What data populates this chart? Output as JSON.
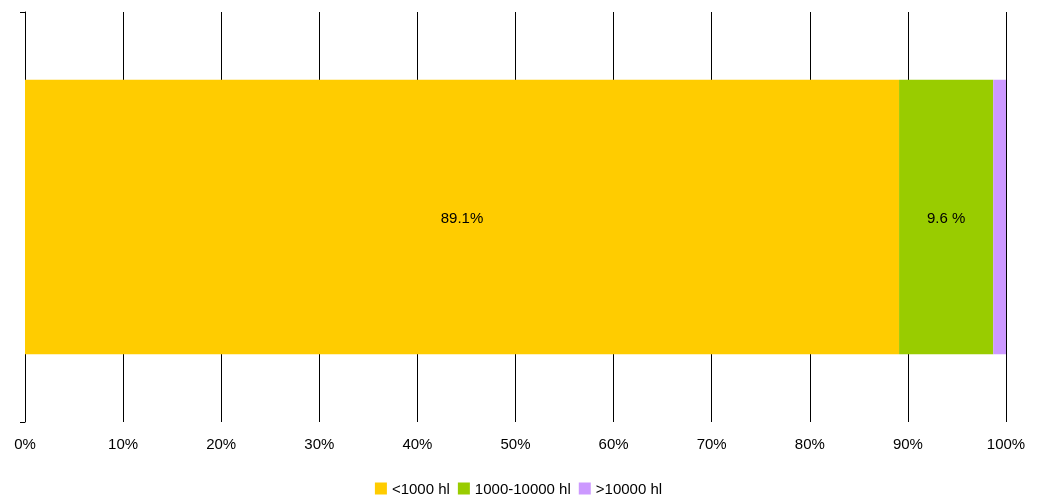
{
  "chart_data": {
    "type": "bar",
    "orientation": "horizontal",
    "stacked": true,
    "categories": [
      null
    ],
    "series": [
      {
        "name": "<1000 hl",
        "color": "#ffcc00",
        "values": [
          89.1
        ],
        "value_labels": [
          "89.1%"
        ]
      },
      {
        "name": "1000-10000 hl",
        "color": "#99cc00",
        "values": [
          9.6
        ],
        "value_labels": [
          "9.6 %"
        ]
      },
      {
        "name": ">10000 hl",
        "color": "#cc99ff",
        "values": [
          1.3
        ],
        "value_labels": [
          null
        ]
      }
    ],
    "xlim": [
      0,
      100
    ],
    "xticks": [
      {
        "value": 0,
        "label": "0%"
      },
      {
        "value": 10,
        "label": "10%"
      },
      {
        "value": 20,
        "label": "20%"
      },
      {
        "value": 30,
        "label": "30%"
      },
      {
        "value": 40,
        "label": "40%"
      },
      {
        "value": 50,
        "label": "50%"
      },
      {
        "value": 60,
        "label": "60%"
      },
      {
        "value": 70,
        "label": "70%"
      },
      {
        "value": 80,
        "label": "80%"
      },
      {
        "value": 90,
        "label": "90%"
      },
      {
        "value": 100,
        "label": "100%"
      }
    ],
    "grid": "x",
    "legend": "bottom"
  }
}
